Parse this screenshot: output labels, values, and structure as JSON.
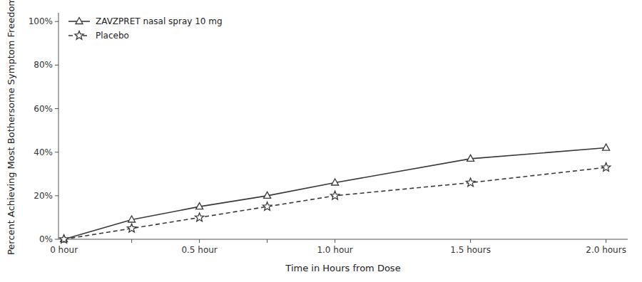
{
  "chart_data": {
    "type": "line",
    "xlabel": "Time in Hours from Dose",
    "ylabel": "Percent Achieving Most Bothersome Symptom Freedom",
    "x": [
      0,
      0.25,
      0.5,
      0.75,
      1.0,
      1.5,
      2.0
    ],
    "series": [
      {
        "name": "ZAVZPRET nasal spray 10 mg",
        "color": "#3a3a3a",
        "marker": "triangle",
        "line_style": "solid",
        "values": [
          0,
          0.09,
          0.15,
          0.2,
          0.26,
          0.37,
          0.42
        ]
      },
      {
        "name": "Placebo",
        "color": "#3a3a3a",
        "marker": "star",
        "line_style": "dashed",
        "values": [
          0,
          0.05,
          0.1,
          0.15,
          0.2,
          0.26,
          0.33
        ]
      }
    ],
    "xlim": [
      -0.02,
      2.08
    ],
    "xticks": [
      {
        "value": 0,
        "label": "0 hour"
      },
      {
        "value": 0.25,
        "label": null
      },
      {
        "value": 0.5,
        "label": "0.5 hour"
      },
      {
        "value": 0.75,
        "label": null
      },
      {
        "value": 1.0,
        "label": "1.0 hour"
      },
      {
        "value": 1.5,
        "label": "1.5 hours"
      },
      {
        "value": 2.0,
        "label": "2.0 hours"
      }
    ],
    "ylim": [
      0,
      1.04
    ],
    "yticks": [
      {
        "value": 0,
        "label": "0%"
      },
      {
        "value": 0.2,
        "label": "20%"
      },
      {
        "value": 0.4,
        "label": "40%"
      },
      {
        "value": 0.6,
        "label": "60%"
      },
      {
        "value": 0.8,
        "label": "80%"
      },
      {
        "value": 1.0,
        "label": "100%"
      }
    ],
    "grid": false,
    "legend": "upper left"
  }
}
